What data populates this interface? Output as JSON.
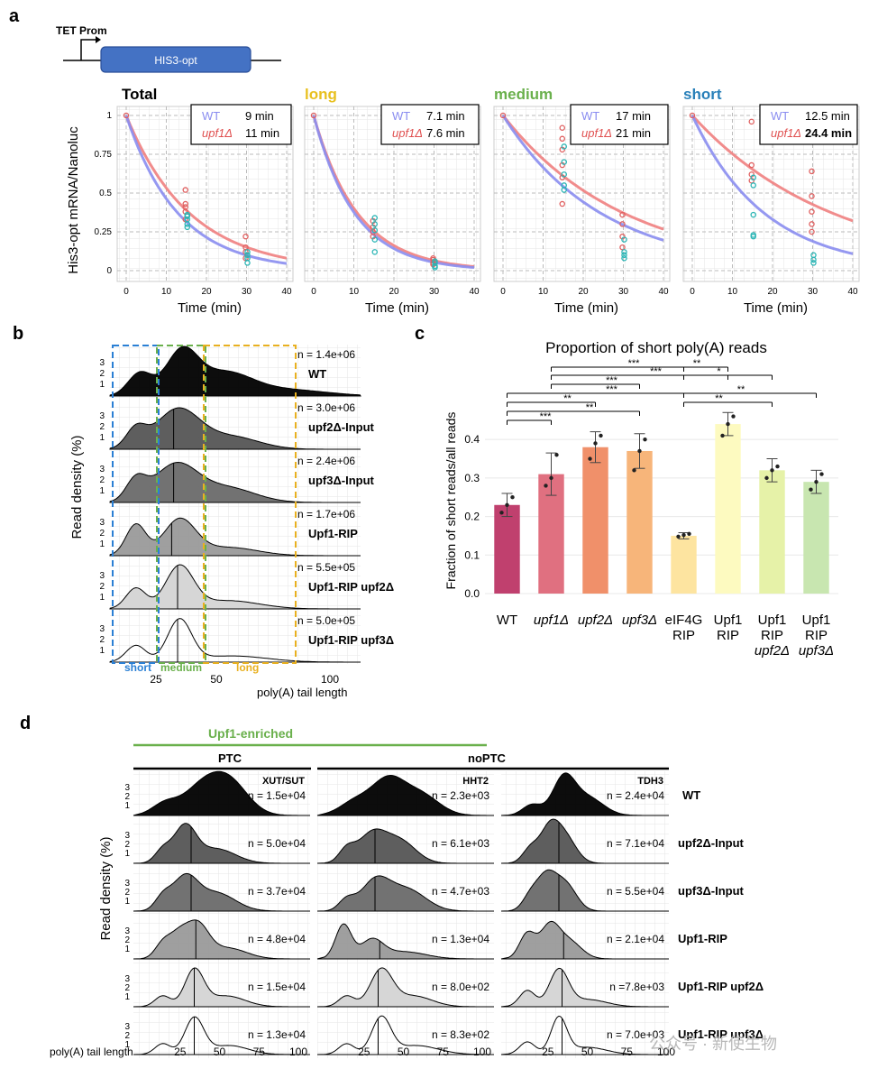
{
  "panel_a": {
    "label": "a",
    "construct": {
      "promoter": "TET Prom",
      "gene": "HIS3-opt"
    },
    "ylabel": "His3-opt mRNA/Nanoluc",
    "xlabel": "Time (min)",
    "yticks": [
      "0",
      "0.25",
      "0.5",
      "0.75",
      "1"
    ],
    "xticks": [
      "0",
      "10",
      "20",
      "30",
      "40"
    ],
    "colors": {
      "wt": "#8a8df0",
      "upf1": "#f08080",
      "upf1_pts": "#e06060",
      "wt_pts": "#2ab5b5",
      "long": "#e8c020",
      "medium": "#6ab04c",
      "short": "#2980b9"
    },
    "facets": [
      {
        "title": "Total",
        "title_color": "#000000",
        "wt_label": "WT",
        "wt_value": "9 min",
        "upf1_label": "upf1Δ",
        "upf1_value": "11 min"
      },
      {
        "title": "long",
        "title_color": "#e8c020",
        "wt_label": "WT",
        "wt_value": "7.1 min",
        "upf1_label": "upf1Δ",
        "upf1_value": "7.6 min"
      },
      {
        "title": "medium",
        "title_color": "#6ab04c",
        "wt_label": "WT",
        "wt_value": "17 min",
        "upf1_label": "upf1Δ",
        "upf1_value": "21 min"
      },
      {
        "title": "short",
        "title_color": "#2980b9",
        "wt_label": "WT",
        "wt_value": "12.5 min",
        "upf1_label": "upf1Δ",
        "upf1_value": "24.4 min"
      }
    ]
  },
  "panel_b": {
    "label": "b",
    "ylabel": "Read density (%)",
    "xlabel": "poly(A) tail length",
    "xticks": [
      "25",
      "50",
      "100"
    ],
    "yticks": [
      "3",
      "2",
      "1"
    ],
    "box_labels": {
      "short": "short",
      "medium": "medium",
      "long": "long"
    },
    "rows": [
      {
        "n": "n = 1.4e+06",
        "name": "WT"
      },
      {
        "n": "n = 3.0e+06",
        "name": "upf2Δ-Input"
      },
      {
        "n": "n = 2.4e+06",
        "name": "upf3Δ-Input"
      },
      {
        "n": "n = 1.7e+06",
        "name": "Upf1-RIP"
      },
      {
        "n": "n = 5.5e+05",
        "name": "Upf1-RIP upf2Δ"
      },
      {
        "n": "n = 5.0e+05",
        "name": "Upf1-RIP upf3Δ"
      }
    ]
  },
  "panel_c": {
    "label": "c",
    "chart_data": {
      "type": "bar",
      "title": "Proportion of short poly(A) reads",
      "ylabel": "Fraction of short reads/all reads",
      "ylim": [
        0,
        0.48
      ],
      "yticks": [
        "0.0",
        "0.1",
        "0.2",
        "0.3",
        "0.4"
      ],
      "categories": [
        "WT",
        "upf1Δ",
        "upf2Δ",
        "upf3Δ",
        "eIF4G RIP",
        "Upf1 RIP",
        "Upf1 RIP upf2Δ",
        "Upf1 RIP upf3Δ"
      ],
      "values": [
        0.23,
        0.31,
        0.38,
        0.37,
        0.15,
        0.44,
        0.32,
        0.29
      ],
      "errors": [
        0.03,
        0.055,
        0.04,
        0.045,
        0.008,
        0.03,
        0.03,
        0.03
      ],
      "colors": [
        "#c0406e",
        "#e07080",
        "#f0906a",
        "#f7b57a",
        "#fde4a0",
        "#fdfac0",
        "#e6f2a8",
        "#c8e6b0"
      ],
      "significance": [
        {
          "label": "***"
        },
        {
          "label": "***"
        },
        {
          "label": "***"
        },
        {
          "label": "***"
        },
        {
          "label": "**"
        },
        {
          "label": "**"
        },
        {
          "label": "***"
        },
        {
          "label": "**"
        },
        {
          "label": "*"
        },
        {
          "label": "**"
        },
        {
          "label": "**"
        }
      ]
    }
  },
  "panel_d": {
    "label": "d",
    "enriched_label": "Upf1-enriched",
    "group_ptc": "PTC",
    "group_noptc": "noPTC",
    "ylabel": "Read density (%)",
    "xlabel": "poly(A) tail length",
    "col_titles": [
      "XUT/SUT",
      "HHT2",
      "TDH3"
    ],
    "xticks_col1": [
      "25",
      "50",
      "75",
      "100"
    ],
    "xticks_col2": [
      "25",
      "50",
      "75",
      "100"
    ],
    "xticks_col3": [
      "25",
      "50",
      "75",
      "100"
    ],
    "row_names": [
      "WT",
      "upf2Δ-Input",
      "upf3Δ-Input",
      "Upf1-RIP",
      "Upf1-RIP upf2Δ",
      "Upf1-RIP upf3Δ"
    ],
    "n_values": [
      [
        "n = 1.5e+04",
        "n = 2.3e+03",
        "n = 2.4e+04"
      ],
      [
        "n = 5.0e+04",
        "n = 6.1e+03",
        "n = 7.1e+04"
      ],
      [
        "n = 3.7e+04",
        "n = 4.7e+03",
        "n = 5.5e+04"
      ],
      [
        "n = 4.8e+04",
        "n = 1.3e+04",
        "n = 2.1e+04"
      ],
      [
        "n = 1.5e+04",
        "n = 8.0e+02",
        "n =7.8e+03"
      ],
      [
        "n = 1.3e+04",
        "n = 8.3e+02",
        "n = 7.0e+03"
      ]
    ]
  },
  "watermark": "公众号 · 新使生物"
}
